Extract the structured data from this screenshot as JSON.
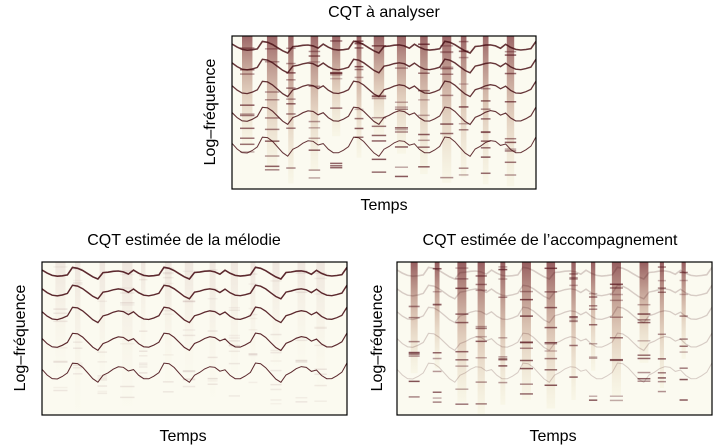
{
  "panels": [
    {
      "title": "CQT à analyser",
      "x_label": "Temps",
      "y_label": "Log–fréquence"
    },
    {
      "title": "CQT estimée de la mélodie",
      "x_label": "Temps",
      "y_label": "Log–fréquence"
    },
    {
      "title": "CQT estimée de l’accompagnement",
      "x_label": "Temps",
      "y_label": "Log–fréquence"
    }
  ]
}
